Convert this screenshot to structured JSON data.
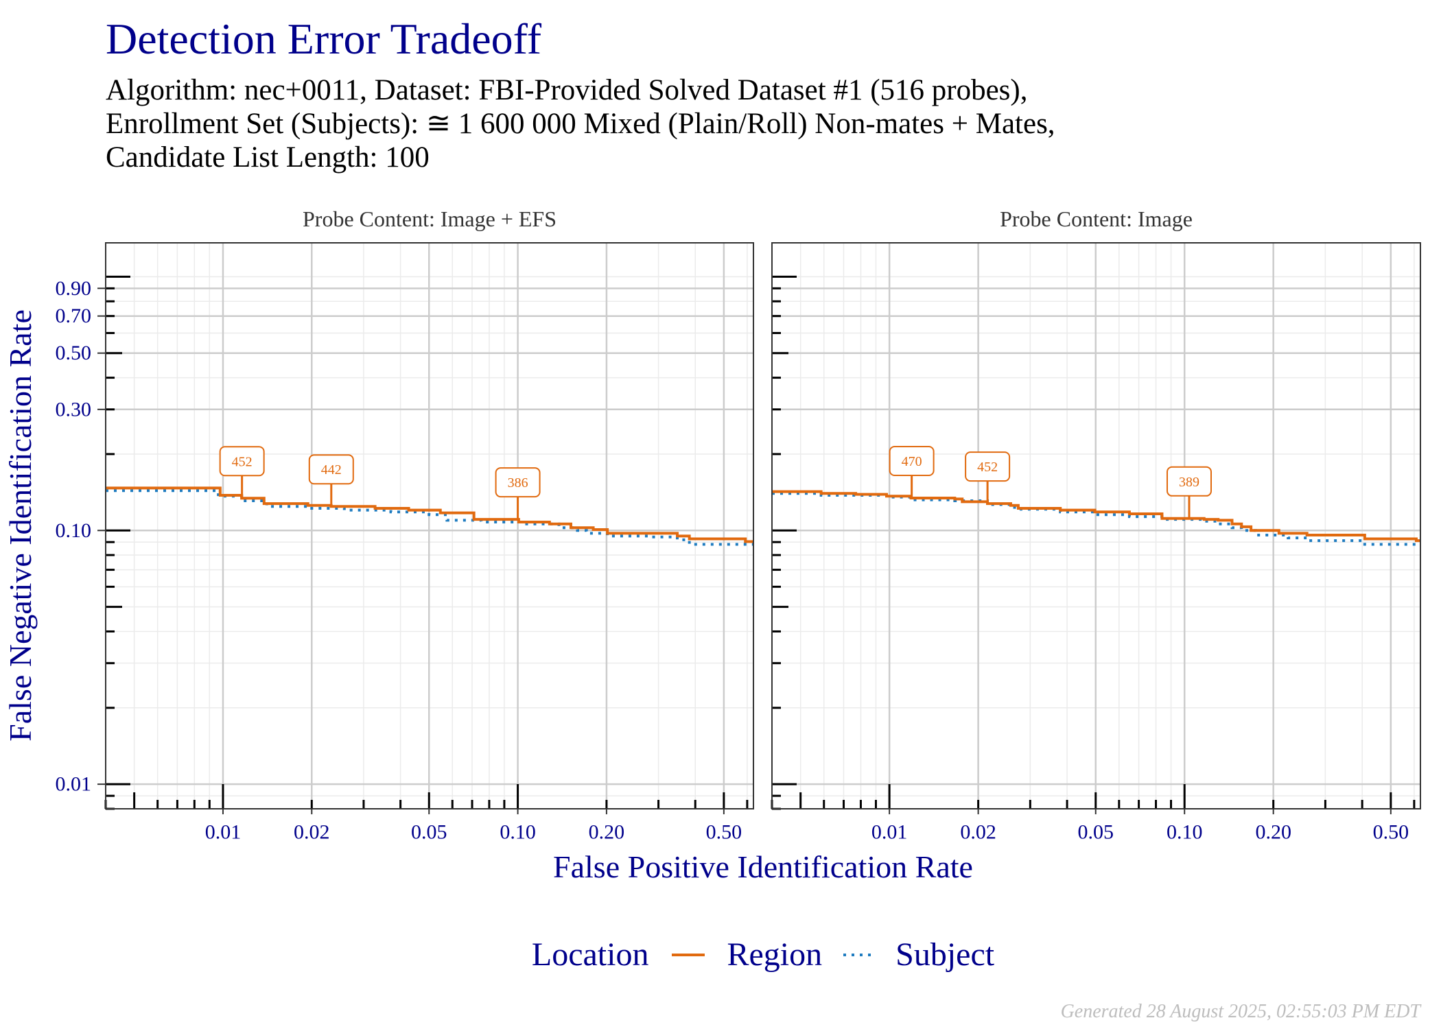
{
  "footer": "Generated 28 August 2025, 02:55:03 PM EDT",
  "chart_data": {
    "type": "line",
    "title": "Detection Error Tradeoff",
    "subtitle_lines": [
      "Algorithm: nec+0011, Dataset: FBI-Provided Solved Dataset #1 (516 probes),",
      "Enrollment Set (Subjects): ≅ 1 600 000 Mixed (Plain/Roll) Non-mates + Mates,",
      "Candidate List Length: 100"
    ],
    "xlabel": "False Positive Identification Rate",
    "ylabel": "False Negative Identification Rate",
    "xscale": "log",
    "yscale": "log",
    "xlim": [
      0.004,
      0.63
    ],
    "ylim": [
      0.008,
      1.36
    ],
    "xticks": [
      0.01,
      0.02,
      0.05,
      0.1,
      0.2,
      0.5
    ],
    "xtick_labels": [
      "0.01",
      "0.02",
      "0.05",
      "0.10",
      "0.20",
      "0.50"
    ],
    "yticks": [
      0.01,
      0.1,
      0.3,
      0.5,
      0.7,
      0.9
    ],
    "ytick_labels": [
      "0.01",
      "0.10",
      "0.30",
      "0.50",
      "0.70",
      "0.90"
    ],
    "grid": true,
    "legend": {
      "title": "Location",
      "position": "bottom"
    },
    "series": [
      {
        "name": "Region",
        "color": "#E16A0F",
        "style": "solid"
      },
      {
        "name": "Subject",
        "color": "#1F7CC0",
        "style": "dotted"
      }
    ],
    "panels": [
      {
        "strip": "Probe Content: Image + EFS",
        "lines": [
          [
            [
              0.004,
              0.147
            ],
            [
              0.00978,
              0.1376
            ],
            [
              0.01157,
              0.134
            ],
            [
              0.01378,
              0.1276
            ],
            [
              0.01941,
              0.1255
            ],
            [
              0.02328,
              0.1244
            ],
            [
              0.0328,
              0.1223
            ],
            [
              0.04265,
              0.1203
            ],
            [
              0.05462,
              0.1173
            ],
            [
              0.071,
              0.1106
            ],
            [
              0.1007,
              0.1079
            ],
            [
              0.1281,
              0.1061
            ],
            [
              0.1514,
              0.1025
            ],
            [
              0.1803,
              0.1008
            ],
            [
              0.2013,
              0.0975
            ],
            [
              0.3475,
              0.0951
            ],
            [
              0.382,
              0.0927
            ],
            [
              0.5916,
              0.0904
            ]
          ],
          [
            [
              0.004,
              0.1435
            ],
            [
              0.00964,
              0.1365
            ],
            [
              0.01157,
              0.1309
            ],
            [
              0.01408,
              0.1244
            ],
            [
              0.0194,
              0.1223
            ],
            [
              0.0258,
              0.1203
            ],
            [
              0.0371,
              0.1183
            ],
            [
              0.05,
              0.1154
            ],
            [
              0.0575,
              0.1097
            ],
            [
              0.0752,
              0.1079
            ],
            [
              0.103,
              0.1061
            ],
            [
              0.1379,
              0.1025
            ],
            [
              0.1593,
              0.1
            ],
            [
              0.171,
              0.0975
            ],
            [
              0.2013,
              0.0951
            ],
            [
              0.2846,
              0.0943
            ],
            [
              0.3475,
              0.0919
            ],
            [
              0.382,
              0.0882
            ]
          ]
        ],
        "annotations": [
          {
            "x": 0.0116,
            "y": 0.134,
            "label": "452"
          },
          {
            "x": 0.0233,
            "y": 0.1244,
            "label": "442"
          },
          {
            "x": 0.1,
            "y": 0.1106,
            "label": "386"
          }
        ]
      },
      {
        "strip": "Probe Content: Image",
        "lines": [
          [
            [
              0.004,
              0.1423
            ],
            [
              0.00587,
              0.14
            ],
            [
              0.00769,
              0.1388
            ],
            [
              0.00978,
              0.1365
            ],
            [
              0.01183,
              0.1342
            ],
            [
              0.01665,
              0.1331
            ],
            [
              0.01765,
              0.1298
            ],
            [
              0.02149,
              0.1276
            ],
            [
              0.02577,
              0.1255
            ],
            [
              0.02733,
              0.1223
            ],
            [
              0.03795,
              0.1203
            ],
            [
              0.04967,
              0.1183
            ],
            [
              0.06505,
              0.1163
            ],
            [
              0.0839,
              0.1115
            ],
            [
              0.1165,
              0.1106
            ],
            [
              0.13,
              0.1097
            ],
            [
              0.1449,
              0.1061
            ],
            [
              0.156,
              0.1034
            ],
            [
              0.168,
              0.1
            ],
            [
              0.2089,
              0.0975
            ],
            [
              0.26,
              0.0959
            ],
            [
              0.408,
              0.0927
            ],
            [
              0.61,
              0.0912
            ]
          ],
          [
            [
              0.004,
              0.14
            ],
            [
              0.00587,
              0.1376
            ],
            [
              0.00978,
              0.1354
            ],
            [
              0.01183,
              0.132
            ],
            [
              0.01665,
              0.1309
            ],
            [
              0.02149,
              0.1265
            ],
            [
              0.02577,
              0.1233
            ],
            [
              0.02733,
              0.1213
            ],
            [
              0.03795,
              0.1183
            ],
            [
              0.04967,
              0.1154
            ],
            [
              0.06505,
              0.1134
            ],
            [
              0.0839,
              0.1106
            ],
            [
              0.1165,
              0.1088
            ],
            [
              0.13,
              0.1061
            ],
            [
              0.1449,
              0.1025
            ],
            [
              0.156,
              0.1
            ],
            [
              0.1742,
              0.0959
            ],
            [
              0.2244,
              0.0935
            ],
            [
              0.26,
              0.0912
            ],
            [
              0.408,
              0.0882
            ]
          ]
        ],
        "annotations": [
          {
            "x": 0.0119,
            "y": 0.1342,
            "label": "470"
          },
          {
            "x": 0.0215,
            "y": 0.1276,
            "label": "452"
          },
          {
            "x": 0.1037,
            "y": 0.1115,
            "label": "389"
          }
        ]
      }
    ]
  }
}
